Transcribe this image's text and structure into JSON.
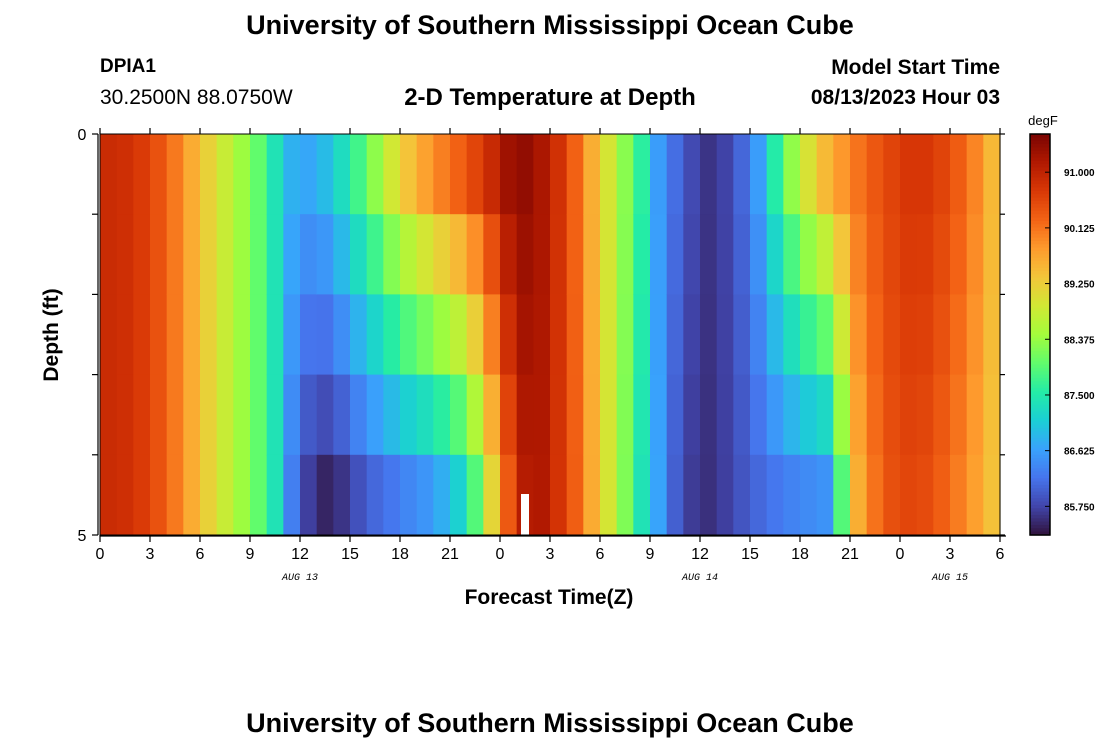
{
  "title": "University of Southern Mississippi Ocean Cube",
  "station": {
    "id": "DPIA1",
    "coords": "30.2500N  88.0750W"
  },
  "subtitle": "2-D Temperature at Depth",
  "model_start": {
    "label": "Model Start Time",
    "value": "08/13/2023 Hour 03"
  },
  "footer_title": "University of Southern Mississippi Ocean Cube",
  "colors": {
    "colormap": [
      "#30123b",
      "#4145ab",
      "#4675ed",
      "#39a2fc",
      "#1bcfd4",
      "#24eca6",
      "#61fc6c",
      "#a4fc3b",
      "#d1e834",
      "#f3c63a",
      "#fe9b2d",
      "#f36315",
      "#d93806",
      "#b11901",
      "#7a0402"
    ],
    "now_marker": "#ffffff"
  },
  "chart_data": {
    "type": "heatmap",
    "xlabel": "Forecast Time(Z)",
    "ylabel": "Depth (ft)",
    "x_tick_labels": [
      "0",
      "3",
      "6",
      "9",
      "12",
      "15",
      "18",
      "21",
      "0",
      "3",
      "6",
      "9",
      "12",
      "15",
      "18",
      "21",
      "0",
      "3",
      "6"
    ],
    "x_hours": [
      0,
      3,
      6,
      9,
      12,
      15,
      18,
      21,
      24,
      27,
      30,
      33,
      36,
      39,
      42,
      45,
      48,
      51,
      54
    ],
    "xlim": [
      0,
      54
    ],
    "date_labels": [
      {
        "text": "AUG 13",
        "hour": 12
      },
      {
        "text": "AUG 14",
        "hour": 36
      },
      {
        "text": "AUG 15",
        "hour": 51
      }
    ],
    "y_tick_labels": [
      "0",
      "5"
    ],
    "ylim": [
      0,
      5
    ],
    "depth_layers": [
      0,
      1,
      2,
      3,
      4,
      5
    ],
    "colorbar": {
      "unit": "degF",
      "tick_labels": [
        "91.000",
        "90.125",
        "89.250",
        "88.375",
        "87.500",
        "86.625",
        "85.750"
      ],
      "tick_values": [
        91.0,
        90.125,
        89.25,
        88.375,
        87.5,
        86.625,
        85.75
      ],
      "range": [
        85.3,
        91.6
      ]
    },
    "current_time_hour": 25.5,
    "surface_profile": [
      [
        0,
        90.9
      ],
      [
        2,
        90.8
      ],
      [
        4,
        90.3
      ],
      [
        6,
        89.4
      ],
      [
        8,
        88.6
      ],
      [
        9.5,
        88.0
      ],
      [
        10.5,
        87.4
      ],
      [
        11.5,
        86.8
      ],
      [
        12.5,
        86.7
      ],
      [
        13.5,
        86.9
      ],
      [
        15,
        87.5
      ],
      [
        16.5,
        88.3
      ],
      [
        18,
        89.2
      ],
      [
        20,
        89.9
      ],
      [
        22,
        90.4
      ],
      [
        23.5,
        90.9
      ],
      [
        24.5,
        91.3
      ],
      [
        25.5,
        91.4
      ],
      [
        26.5,
        91.2
      ],
      [
        28,
        90.6
      ],
      [
        29.5,
        89.6
      ],
      [
        31,
        88.6
      ],
      [
        32.5,
        87.6
      ],
      [
        33.5,
        86.6
      ],
      [
        35,
        85.9
      ],
      [
        36.5,
        85.6
      ],
      [
        38,
        85.8
      ],
      [
        39.5,
        86.6
      ],
      [
        41,
        88.0
      ],
      [
        43,
        89.3
      ],
      [
        45,
        90.0
      ],
      [
        47,
        90.5
      ],
      [
        49,
        90.8
      ],
      [
        51,
        90.5
      ],
      [
        53,
        89.8
      ],
      [
        54,
        89.2
      ]
    ],
    "depth_profile_bottom": [
      [
        0,
        90.9
      ],
      [
        2,
        90.8
      ],
      [
        4,
        90.3
      ],
      [
        6,
        89.4
      ],
      [
        8,
        88.6
      ],
      [
        9.5,
        88.0
      ],
      [
        10.5,
        87.4
      ],
      [
        11.5,
        86.3
      ],
      [
        13,
        85.4
      ],
      [
        14.5,
        85.6
      ],
      [
        16,
        86.0
      ],
      [
        18,
        86.3
      ],
      [
        20,
        86.6
      ],
      [
        22,
        87.3
      ],
      [
        23,
        88.5
      ],
      [
        24,
        89.8
      ],
      [
        25,
        90.9
      ],
      [
        26,
        91.3
      ],
      [
        27,
        91.0
      ],
      [
        28.5,
        90.3
      ],
      [
        30,
        89.3
      ],
      [
        31.5,
        88.2
      ],
      [
        33,
        87.0
      ],
      [
        34.5,
        86.0
      ],
      [
        36,
        85.5
      ],
      [
        37.5,
        85.7
      ],
      [
        39,
        86.0
      ],
      [
        41,
        86.3
      ],
      [
        43.5,
        86.5
      ],
      [
        44.5,
        87.9
      ],
      [
        45.5,
        89.6
      ],
      [
        47,
        90.4
      ],
      [
        49,
        90.6
      ],
      [
        51,
        90.2
      ],
      [
        53,
        89.6
      ],
      [
        54,
        89.2
      ]
    ]
  }
}
